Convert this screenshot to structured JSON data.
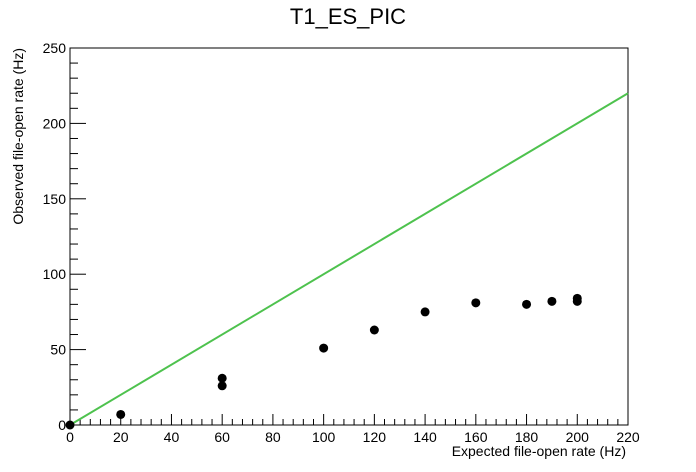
{
  "chart_data": {
    "type": "scatter",
    "title": "T1_ES_PIC",
    "xlabel": "Expected file-open rate (Hz)",
    "ylabel": "Observed file-open rate (Hz)",
    "xlim": [
      0,
      220
    ],
    "ylim": [
      0,
      250
    ],
    "xticks": [
      0,
      20,
      40,
      60,
      80,
      100,
      120,
      140,
      160,
      180,
      200,
      220
    ],
    "yticks": [
      0,
      50,
      100,
      150,
      200,
      250
    ],
    "grid": false,
    "legend": "none",
    "colors": {
      "points": "#000000",
      "reference_line": "#4ec24e",
      "frame": "#000000"
    },
    "series": [
      {
        "values": [
          {
            "x": 0,
            "y": 0
          },
          {
            "x": 20,
            "y": 7
          },
          {
            "x": 60,
            "y": 26
          },
          {
            "x": 60,
            "y": 31
          },
          {
            "x": 100,
            "y": 51
          },
          {
            "x": 120,
            "y": 63
          },
          {
            "x": 140,
            "y": 75
          },
          {
            "x": 160,
            "y": 81
          },
          {
            "x": 180,
            "y": 80
          },
          {
            "x": 190,
            "y": 82
          },
          {
            "x": 200,
            "y": 82
          },
          {
            "x": 200,
            "y": 84
          }
        ]
      }
    ],
    "reference_line": {
      "type": "y=x",
      "from": [
        0,
        0
      ],
      "to": [
        220,
        220
      ]
    }
  }
}
